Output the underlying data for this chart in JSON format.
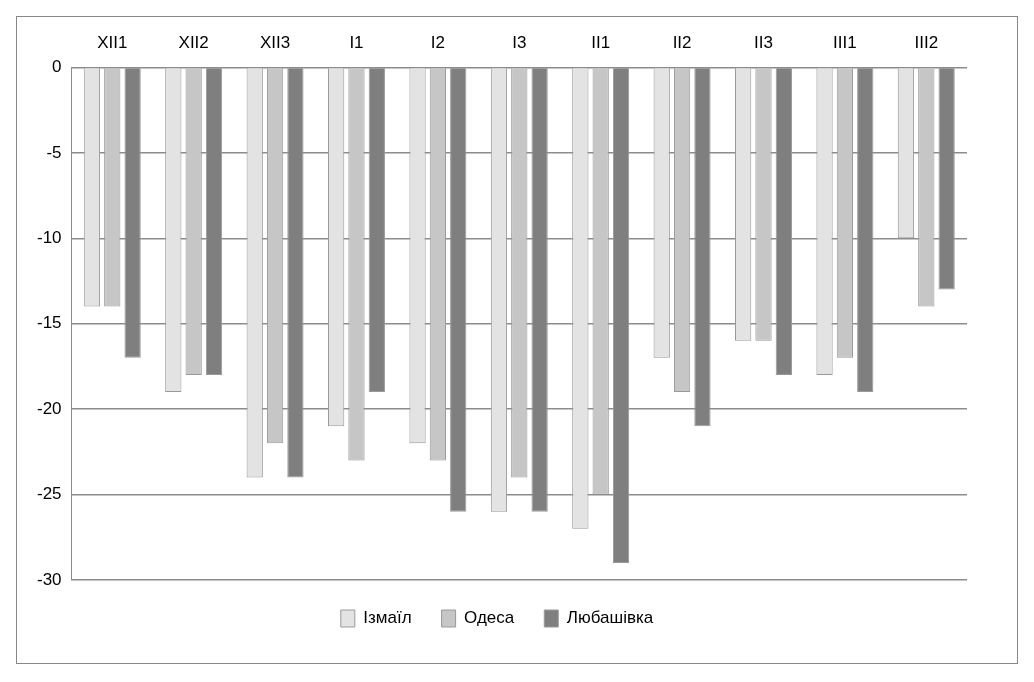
{
  "chart_data": {
    "type": "bar",
    "categories": [
      "XII1",
      "XII2",
      "XII3",
      "I1",
      "I2",
      "I3",
      "II1",
      "II2",
      "II3",
      "III1",
      "III2"
    ],
    "series": [
      {
        "name": "Ізмаїл",
        "color": "#e3e3e3",
        "values": [
          -14,
          -19,
          -24,
          -21,
          -22,
          -26,
          -27,
          -17,
          -16,
          -18,
          -10
        ]
      },
      {
        "name": "Одеса",
        "color": "#c6c6c6",
        "values": [
          -14,
          -18,
          -22,
          -23,
          -23,
          -24,
          -25,
          -19,
          -16,
          -17,
          -14
        ]
      },
      {
        "name": "Любашівка",
        "color": "#7f7f7f",
        "values": [
          -17,
          -18,
          -24,
          -19,
          -26,
          -26,
          -29,
          -21,
          -18,
          -19,
          -13
        ]
      }
    ],
    "ylim": [
      -30,
      0
    ],
    "yticks": [
      0,
      -5,
      -10,
      -15,
      -20,
      -25,
      -30
    ],
    "grid": "y",
    "legend": "bottom"
  }
}
